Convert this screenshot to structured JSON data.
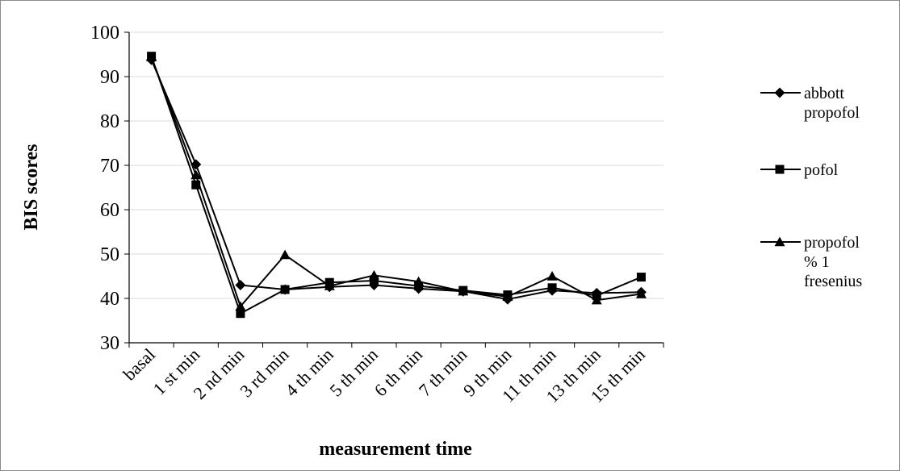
{
  "chart_data": {
    "type": "line",
    "title": "",
    "xlabel": "measurement time",
    "ylabel": "BIS scores",
    "ylim": [
      30,
      100
    ],
    "yticks": [
      "30",
      "40",
      "50",
      "60",
      "70",
      "80",
      "90",
      "100"
    ],
    "grid": "horizontal",
    "legend_position": "right",
    "categories": [
      "basal",
      "1 st min",
      "2 nd min",
      "3 rd min",
      "4 th min",
      "5 th min",
      "6 th min",
      "7 th min",
      "9 th min",
      "11 th min",
      "13 th min",
      "15 th min"
    ],
    "series": [
      {
        "name_lines": [
          "abbott",
          "propofol"
        ],
        "marker": "diamond",
        "values": [
          93.8,
          70.2,
          43.0,
          42.0,
          42.6,
          43.0,
          42.2,
          41.6,
          39.8,
          41.8,
          41.2,
          41.4
        ]
      },
      {
        "name_lines": [
          "pofol"
        ],
        "marker": "square",
        "values": [
          94.6,
          65.6,
          36.6,
          42.0,
          43.6,
          44.0,
          42.8,
          41.8,
          40.8,
          42.4,
          40.6,
          44.8
        ]
      },
      {
        "name_lines": [
          "propofol",
          "% 1",
          "fresenius"
        ],
        "marker": "triangle",
        "values": [
          94.4,
          67.8,
          38.2,
          49.8,
          42.8,
          45.2,
          43.8,
          41.6,
          40.4,
          45.0,
          39.6,
          41.0
        ]
      }
    ],
    "colors": {
      "line": "#000000",
      "grid": "#d9d9d9",
      "frame": "#8c8c8c"
    }
  }
}
